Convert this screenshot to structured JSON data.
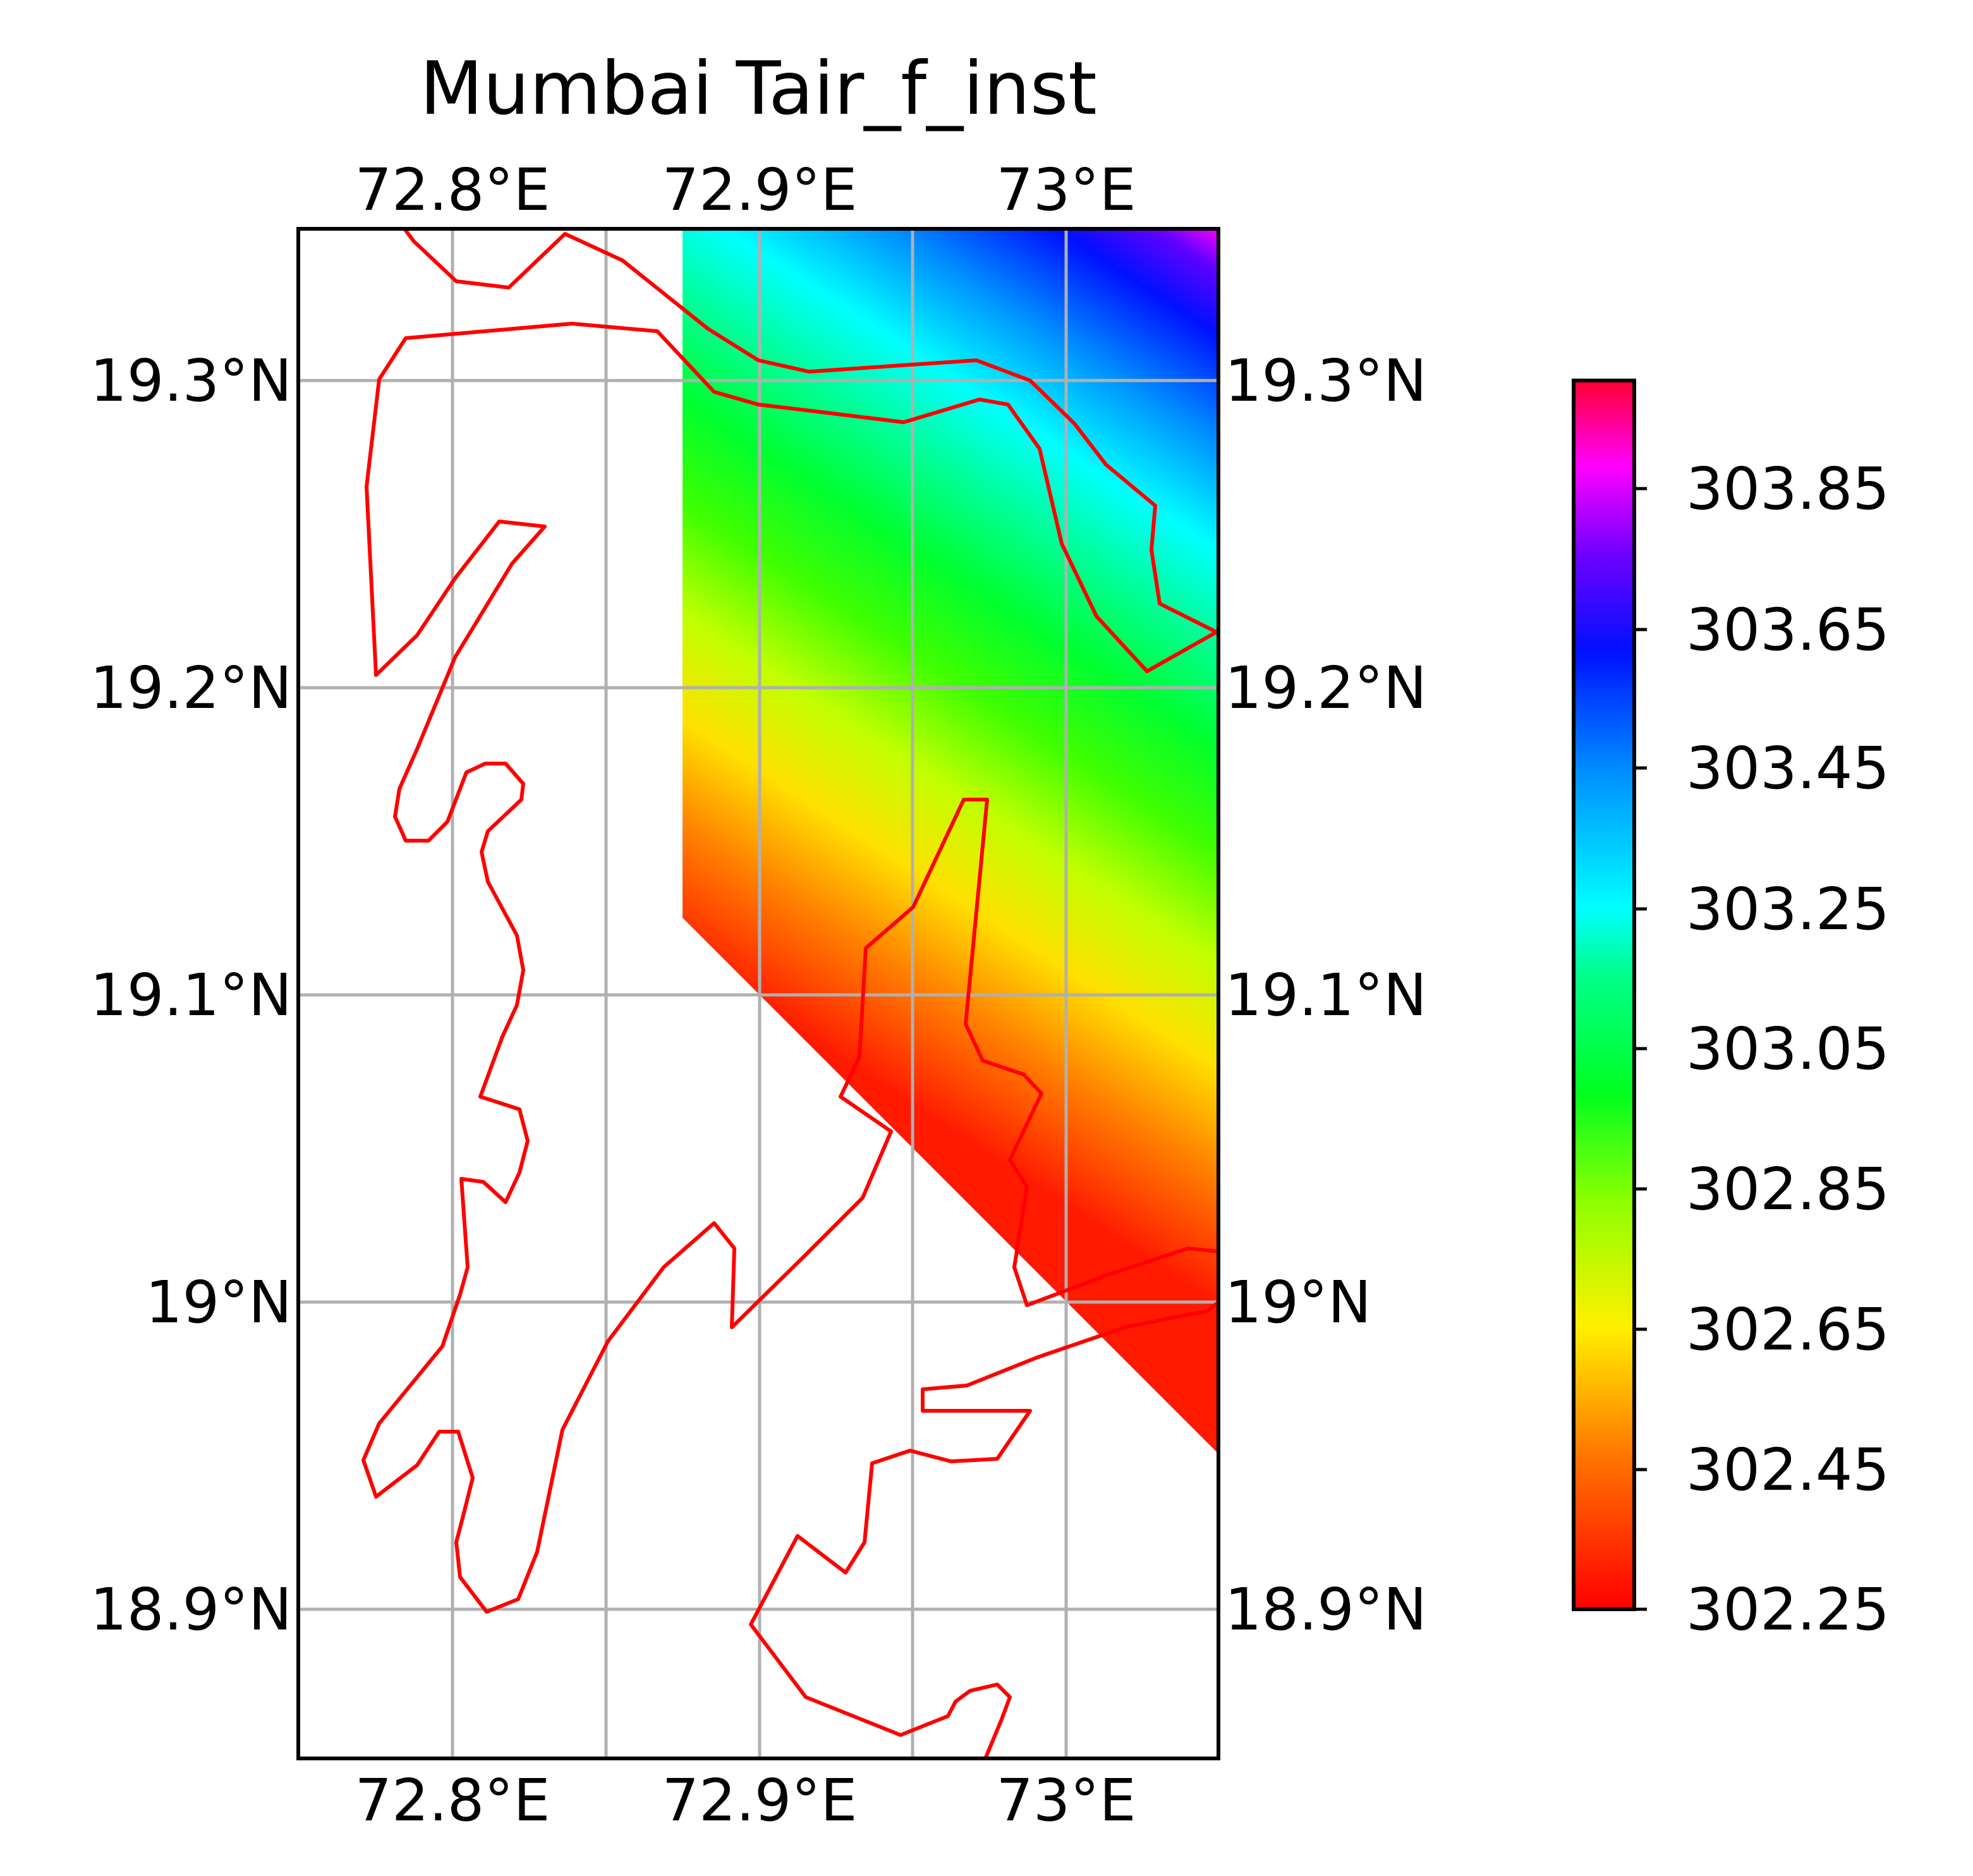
{
  "title": "Mumbai Tair_f_inst",
  "map": {
    "lon_ticks": [
      "72.8°E",
      "72.9°E",
      "73°E"
    ],
    "lat_ticks": [
      "19.3°N",
      "19.2°N",
      "19.1°N",
      "19°N",
      "18.9°N"
    ],
    "lon_range": [
      72.75,
      73.05
    ],
    "lat_range": [
      18.85,
      19.35
    ],
    "grid": true,
    "coastline_color": "#ff0000",
    "grid_color": "#b0b0b0"
  },
  "colorbar": {
    "cmap": "gist_rainbow_r",
    "min": 302.25,
    "max": 303.95,
    "step": 0.05,
    "tick_labels": [
      "303.85",
      "303.65",
      "303.45",
      "303.25",
      "303.05",
      "302.85",
      "302.65",
      "302.45",
      "302.25"
    ],
    "placement": "right"
  },
  "chart_data": {
    "type": "heatmap",
    "title": "Mumbai Tair_f_inst",
    "xlabel": "",
    "ylabel": "",
    "xlim": [
      72.75,
      73.05
    ],
    "ylim": [
      18.85,
      19.35
    ],
    "x_ticks": [
      72.8,
      72.9,
      73.0
    ],
    "y_ticks": [
      18.9,
      19.0,
      19.1,
      19.2,
      19.3
    ],
    "value_range": [
      302.25,
      303.95
    ],
    "data_extent": {
      "lon": [
        72.875,
        73.05
      ],
      "lat": [
        18.95,
        19.35
      ]
    },
    "gradient_note": "values increase from southwest (~302.3) to northeast (~303.95)",
    "legend": "colorbar-right"
  }
}
